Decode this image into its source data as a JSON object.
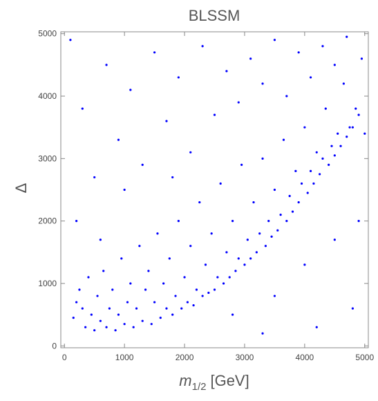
{
  "chart_data": {
    "type": "scatter",
    "title": "BLSSM",
    "xlabel": {
      "symbol": "m",
      "subscript": "1/2",
      "unit": "[GeV]"
    },
    "ylabel": "Δ",
    "xlim": [
      -60,
      5060
    ],
    "ylim": [
      -30,
      5030
    ],
    "xticks": [
      0,
      1000,
      2000,
      3000,
      4000,
      5000
    ],
    "yticks": [
      0,
      1000,
      2000,
      3000,
      4000,
      5000
    ],
    "color": "#0000ff",
    "x": [
      150,
      200,
      250,
      300,
      350,
      400,
      450,
      500,
      550,
      600,
      650,
      700,
      750,
      800,
      850,
      900,
      950,
      1000,
      1050,
      1100,
      1150,
      1200,
      1250,
      1300,
      1350,
      1400,
      1450,
      1500,
      1550,
      1600,
      1650,
      1700,
      1750,
      1800,
      1850,
      1900,
      1950,
      2000,
      2050,
      2100,
      2150,
      2200,
      2250,
      2300,
      2350,
      2400,
      2450,
      2500,
      2550,
      2600,
      2650,
      2700,
      2750,
      2800,
      2850,
      2900,
      2950,
      3000,
      3050,
      3100,
      3150,
      3200,
      3250,
      3300,
      3350,
      3400,
      3450,
      3500,
      3550,
      3600,
      3650,
      3700,
      3750,
      3800,
      3850,
      3900,
      3950,
      4000,
      4050,
      4100,
      4150,
      4200,
      4250,
      4300,
      4350,
      4400,
      4450,
      4500,
      4550,
      4600,
      4650,
      4700,
      4750,
      4800,
      4850,
      4900,
      4950,
      5000,
      100,
      300,
      500,
      700,
      900,
      1100,
      1300,
      1500,
      1700,
      1900,
      2100,
      2300,
      2500,
      2700,
      2900,
      3100,
      3300,
      3500,
      3700,
      3900,
      4100,
      4300,
      4500,
      4700,
      2800,
      3500,
      4000,
      4500,
      4800,
      4200,
      3300,
      4900,
      200,
      600,
      1000,
      1800
    ],
    "y": [
      450,
      700,
      900,
      600,
      300,
      1100,
      500,
      250,
      800,
      400,
      1200,
      300,
      600,
      900,
      250,
      500,
      1400,
      350,
      700,
      1000,
      300,
      600,
      1600,
      400,
      900,
      1200,
      350,
      700,
      1800,
      450,
      1000,
      600,
      1400,
      500,
      800,
      2000,
      600,
      1100,
      700,
      1600,
      650,
      900,
      2300,
      800,
      1300,
      850,
      1800,
      900,
      1100,
      2600,
      1000,
      1500,
      1100,
      2000,
      1200,
      1400,
      2900,
      1300,
      1700,
      1400,
      2300,
      1500,
      1800,
      3000,
      1600,
      2000,
      1750,
      2500,
      1850,
      2100,
      3300,
      2000,
      2400,
      2150,
      2800,
      2300,
      2600,
      3500,
      2450,
      2800,
      2600,
      3100,
      2750,
      3000,
      3800,
      2900,
      3200,
      3050,
      3400,
      3200,
      4200,
      3350,
      3500,
      3500,
      3800,
      3700,
      4600,
      3400,
      4900,
      3800,
      2700,
      4500,
      3300,
      4100,
      2900,
      4700,
      3600,
      4300,
      3100,
      4800,
      3700,
      4400,
      3900,
      4600,
      4200,
      4900,
      4000,
      4700,
      4300,
      4800,
      4500,
      4950,
      500,
      800,
      1300,
      1700,
      600,
      300,
      200,
      2000,
      2000,
      1700,
      2500,
      2700
    ]
  }
}
